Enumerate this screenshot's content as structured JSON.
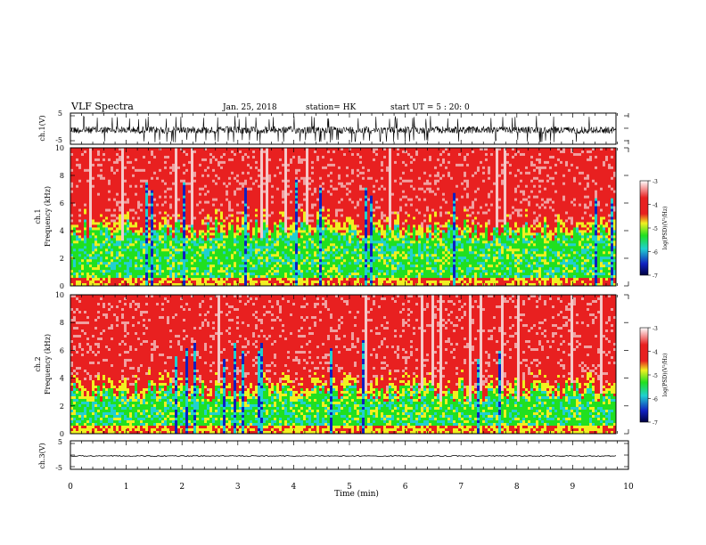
{
  "header": {
    "title": "VLF Spectra",
    "date": "Jan. 25, 2018",
    "station": "station= HK",
    "start": "start UT = 5 : 20: 0"
  },
  "chart_data": [
    {
      "type": "line",
      "name": "ch1-waveform",
      "ylabel": "ch.1(V)",
      "yticks": [
        "5",
        "-5"
      ],
      "ylim": [
        -5,
        5
      ],
      "xlim": [
        0,
        10
      ],
      "signal": "noisy waveform with frequent impulsive spikes"
    },
    {
      "type": "heatmap",
      "name": "ch1-spectrogram",
      "ylabel_line1": "ch.1",
      "ylabel_line2": "Frequency (kHz)",
      "yticks": [
        "0",
        "2",
        "4",
        "6",
        "8",
        "10"
      ],
      "ylim": [
        0,
        10
      ],
      "xlim": [
        0,
        9.8
      ],
      "colorbar": {
        "label": "log(PSD)(V²/Hz)",
        "ticks": [
          "-3",
          "-4",
          "-5",
          "-6",
          "-7"
        ],
        "range": [
          -7,
          -3
        ]
      },
      "pattern": "high PSD (red) above ~4 kHz, lower PSD (green/cyan) below ~4 kHz, vertical impulsive streaks"
    },
    {
      "type": "heatmap",
      "name": "ch2-spectrogram",
      "ylabel_line1": "ch.2",
      "ylabel_line2": "Frequency (kHz)",
      "yticks": [
        "0",
        "2",
        "4",
        "6",
        "8",
        "10"
      ],
      "ylim": [
        0,
        10
      ],
      "xlim": [
        0,
        9.8
      ],
      "colorbar": {
        "label": "log(PSD)(V²/Hz)",
        "ticks": [
          "-3",
          "-4",
          "-5",
          "-6",
          "-7"
        ],
        "range": [
          -7,
          -3
        ]
      },
      "pattern": "high PSD (red) above ~3 kHz, lower PSD (green/cyan) below ~3 kHz, vertical impulsive streaks"
    },
    {
      "type": "line",
      "name": "ch3-waveform",
      "ylabel": "ch.3(V)",
      "yticks": [
        "5",
        "-5"
      ],
      "ylim": [
        -5,
        5
      ],
      "xlim": [
        0,
        10
      ],
      "signal": "flat trace near -2 V"
    }
  ],
  "xaxis": {
    "label": "Time (min)",
    "ticks": [
      "0",
      "1",
      "2",
      "3",
      "4",
      "5",
      "6",
      "7",
      "8",
      "9",
      "10"
    ]
  },
  "colors": {
    "high": "#e82020",
    "mid": "#f0f020",
    "low": "#20e020",
    "lower": "#20d0d0",
    "lowest": "#1020c0"
  }
}
